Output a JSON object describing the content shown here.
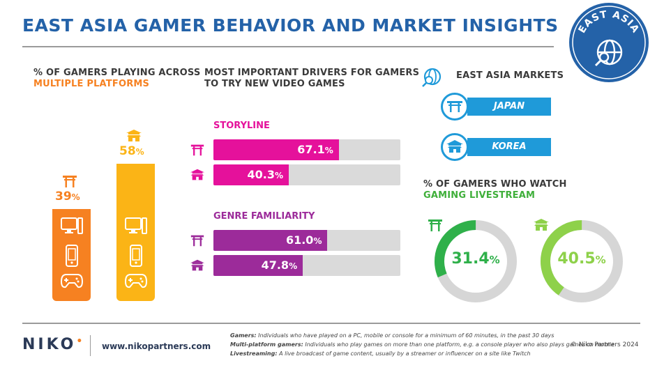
{
  "title": "EAST ASIA GAMER BEHAVIOR AND MARKET INSIGHTS",
  "badge": {
    "text": "EAST ASIA"
  },
  "colors": {
    "blue": "#2462a8",
    "orange": "#f68121",
    "yellow": "#fbb416",
    "magenta": "#e5119b",
    "purple": "#9c2b9a",
    "green": "#3faf3a",
    "light_blue": "#1f9ad9"
  },
  "multiplatform": {
    "title_line1": "% OF GAMERS PLAYING ACROSS",
    "title_line2": "MULTIPLE PLATFORMS",
    "icons": [
      "pc-icon",
      "mobile-icon",
      "gamepad-icon"
    ],
    "chart_data": {
      "type": "bar",
      "categories": [
        "Japan",
        "Korea"
      ],
      "values": [
        39,
        58
      ],
      "labels": [
        "39",
        "58"
      ],
      "unit": "%",
      "ylim": [
        0,
        100
      ]
    }
  },
  "drivers": {
    "title_line1": "MOST IMPORTANT DRIVERS FOR GAMERS",
    "title_line2": "TO TRY NEW VIDEO GAMES",
    "chart_data": {
      "type": "bar",
      "orientation": "horizontal",
      "xlim": [
        0,
        100
      ],
      "unit": "%",
      "groups": [
        {
          "name": "STORYLINE",
          "bars": [
            {
              "market": "Japan",
              "value": 67.1,
              "label": "67.1"
            },
            {
              "market": "Korea",
              "value": 40.3,
              "label": "40.3"
            }
          ]
        },
        {
          "name": "GENRE FAMILIARITY",
          "bars": [
            {
              "market": "Japan",
              "value": 61.0,
              "label": "61.0"
            },
            {
              "market": "Korea",
              "value": 47.8,
              "label": "47.8"
            }
          ]
        }
      ]
    }
  },
  "markets": {
    "title": "EAST ASIA MARKETS",
    "items": [
      {
        "label": "JAPAN",
        "icon": "torii-gate-icon"
      },
      {
        "label": "KOREA",
        "icon": "palace-icon"
      }
    ]
  },
  "livestream": {
    "title_line1": "% OF GAMERS WHO WATCH",
    "title_line2": "GAMING LIVESTREAM",
    "chart_data": {
      "type": "pie",
      "style": "donut",
      "categories": [
        "Japan",
        "Korea"
      ],
      "values": [
        31.4,
        40.5
      ],
      "labels": [
        "31.4",
        "40.5"
      ],
      "unit": "%"
    }
  },
  "footer": {
    "logo": "NIKO",
    "url": "www.nikopartners.com",
    "notes": [
      {
        "term": "Gamers:",
        "text": " Individuals who have played on a PC, mobile or console for a minimum of 60 minutes, in the past 30 days"
      },
      {
        "term": "Multi-platform gamers:",
        "text": " Individuals who play games on more than one platform, e.g. a console player who also plays games on mobile"
      },
      {
        "term": "Livestreaming:",
        "text": " A live broadcast of game content, usually by a streamer or influencer on a site like Twitch"
      }
    ],
    "copyright": "© Niko Partners 2024"
  }
}
